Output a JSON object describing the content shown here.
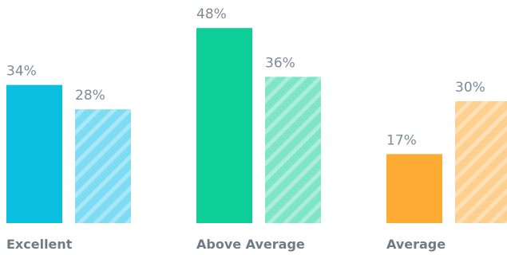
{
  "chart_data": {
    "type": "bar",
    "categories": [
      "Excellent",
      "Above Average",
      "Average"
    ],
    "series": [
      {
        "values": [
          34,
          48,
          17
        ],
        "labels": [
          "34%",
          "48%",
          "17%"
        ],
        "pattern": "solid"
      },
      {
        "values": [
          28,
          36,
          30
        ],
        "labels": [
          "28%",
          "36%",
          "30%"
        ],
        "pattern": "diagonal-stripes"
      }
    ],
    "category_colors": {
      "Excellent": {
        "solid": "#0bbfe0",
        "light": "#7ddcf2"
      },
      "Above Average": {
        "solid": "#0dce96",
        "light": "#7fe5c7"
      },
      "Average": {
        "solid": "#fdab33",
        "light": "#fdd08f"
      }
    },
    "value_label_color": "#7d8a97",
    "category_label_color": "#6f7b87",
    "grid": false,
    "legend": "none",
    "ylim": [
      0,
      50
    ]
  }
}
